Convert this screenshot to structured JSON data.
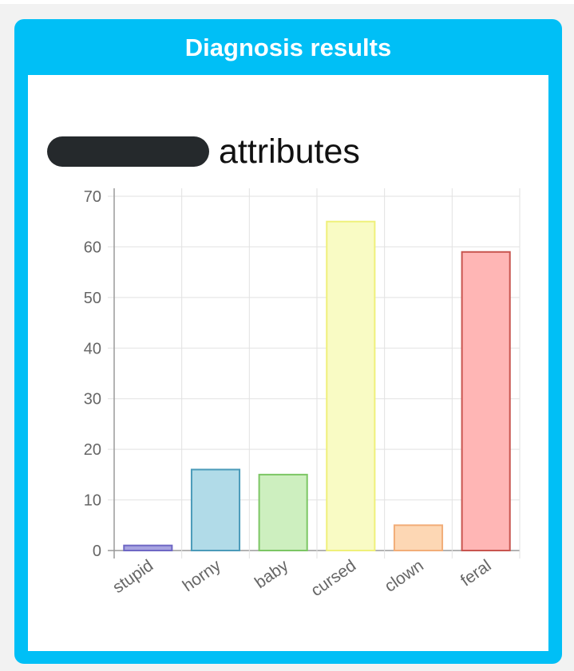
{
  "card": {
    "title": "Diagnosis results",
    "heading_suffix": "attributes"
  },
  "colors": {
    "card_border": "#00bff6",
    "redaction": "#25292c"
  },
  "chart_data": {
    "type": "bar",
    "title": "",
    "xlabel": "",
    "ylabel": "",
    "categories": [
      "stupid",
      "horny",
      "baby",
      "cursed",
      "clown",
      "feral"
    ],
    "values": [
      1,
      16,
      15,
      65,
      5,
      59
    ],
    "ylim": [
      0,
      70
    ],
    "yticks": [
      0,
      10,
      20,
      30,
      40,
      50,
      60,
      70
    ],
    "grid": true,
    "bar_fills": [
      "#a7a3e0",
      "#b1dbe8",
      "#cdefbf",
      "#f9fbc4",
      "#fdd7b4",
      "#ffb6b5"
    ],
    "bar_strokes": [
      "#6e67c4",
      "#4a9ab9",
      "#7cc664",
      "#eff07a",
      "#f2ad78",
      "#c8554f"
    ]
  }
}
